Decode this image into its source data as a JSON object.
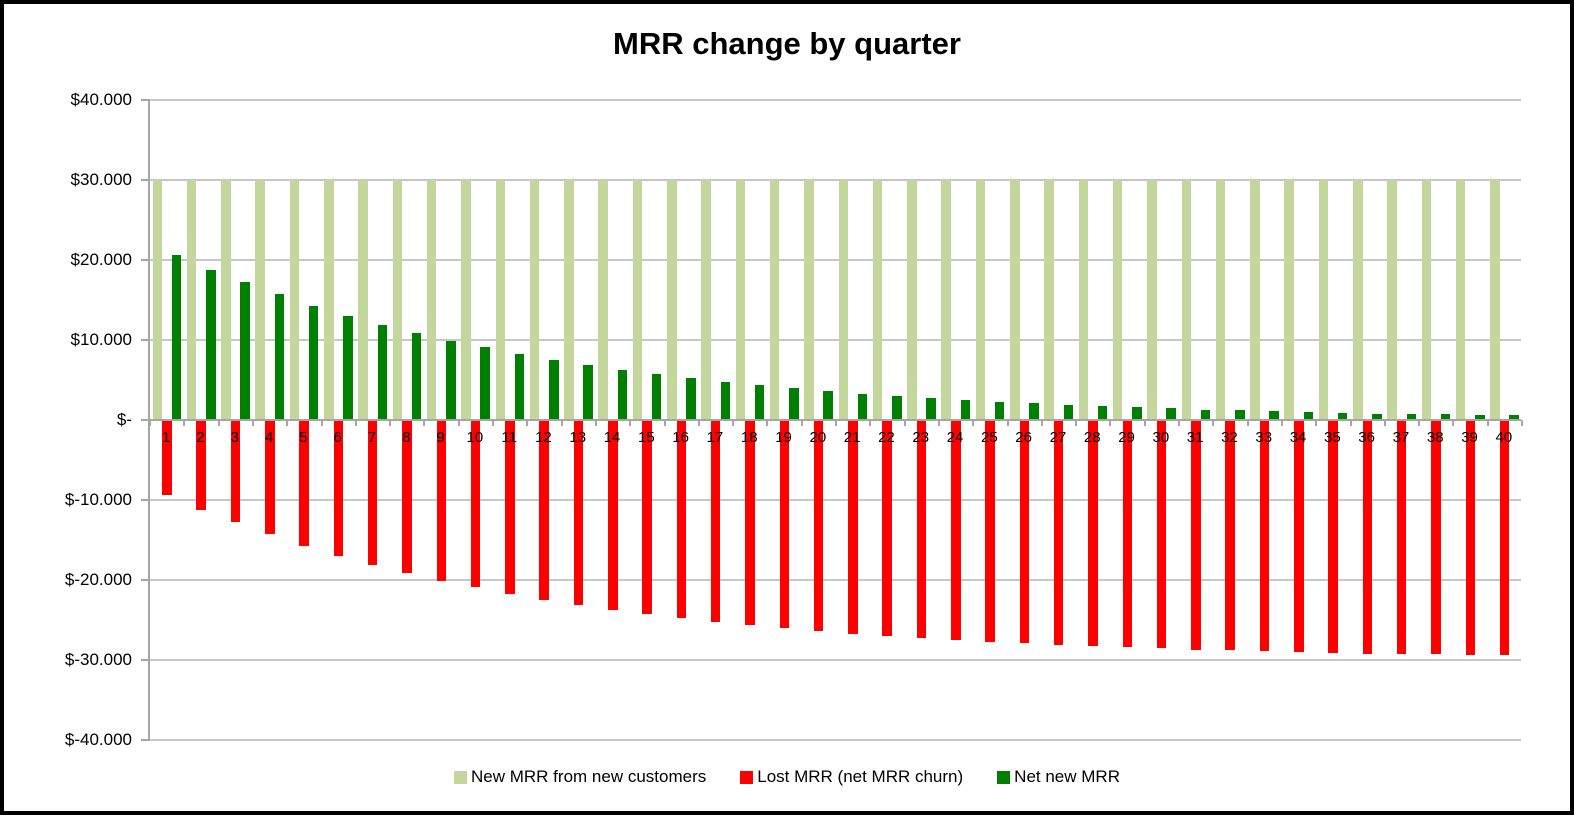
{
  "chart_data": {
    "type": "bar",
    "title": "MRR change by quarter",
    "xlabel": "",
    "ylabel": "",
    "categories": [
      "1",
      "2",
      "3",
      "4",
      "5",
      "6",
      "7",
      "8",
      "9",
      "10",
      "11",
      "12",
      "13",
      "14",
      "15",
      "16",
      "17",
      "18",
      "19",
      "20",
      "21",
      "22",
      "23",
      "24",
      "25",
      "26",
      "27",
      "28",
      "29",
      "30",
      "31",
      "32",
      "33",
      "34",
      "35",
      "36",
      "37",
      "38",
      "39",
      "40"
    ],
    "series": [
      {
        "name": "New MRR from new customers",
        "color": "#c3d69b",
        "values": [
          30000,
          30000,
          30000,
          30000,
          30000,
          30000,
          30000,
          30000,
          30000,
          30000,
          30000,
          30000,
          30000,
          30000,
          30000,
          30000,
          30000,
          30000,
          30000,
          30000,
          30000,
          30000,
          30000,
          30000,
          30000,
          30000,
          30000,
          30000,
          30000,
          30000,
          30000,
          30000,
          30000,
          30000,
          30000,
          30000,
          30000,
          30000,
          30000,
          30000
        ]
      },
      {
        "name": "Lost MRR (net MRR churn)",
        "color": "#ff0000",
        "values": [
          -9400,
          -11200,
          -12800,
          -14300,
          -15700,
          -17000,
          -18100,
          -19100,
          -20100,
          -20900,
          -21700,
          -22500,
          -23100,
          -23700,
          -24300,
          -24800,
          -25200,
          -25600,
          -26000,
          -26400,
          -26700,
          -27000,
          -27200,
          -27500,
          -27700,
          -27900,
          -28100,
          -28300,
          -28400,
          -28500,
          -28700,
          -28800,
          -28900,
          -29000,
          -29100,
          -29200,
          -29200,
          -29300,
          -29400,
          -29400
        ]
      },
      {
        "name": "Net new MRR",
        "color": "#008000",
        "values": [
          20600,
          18800,
          17200,
          15700,
          14300,
          13000,
          11900,
          10900,
          9900,
          9100,
          8300,
          7500,
          6900,
          6300,
          5700,
          5200,
          4800,
          4400,
          4000,
          3600,
          3300,
          3000,
          2800,
          2500,
          2300,
          2100,
          1900,
          1700,
          1600,
          1500,
          1300,
          1200,
          1100,
          1000,
          900,
          800,
          800,
          700,
          600,
          600
        ]
      }
    ],
    "y_axis": {
      "min": -40000,
      "max": 40000,
      "step": 10000,
      "tick_labels": [
        "$40.000",
        "$30.000",
        "$20.000",
        "$10.000",
        "$-",
        "$-10.000",
        "$-20.000",
        "$-30.000",
        "$-40.000"
      ]
    },
    "grid": true,
    "legend_position": "bottom"
  }
}
